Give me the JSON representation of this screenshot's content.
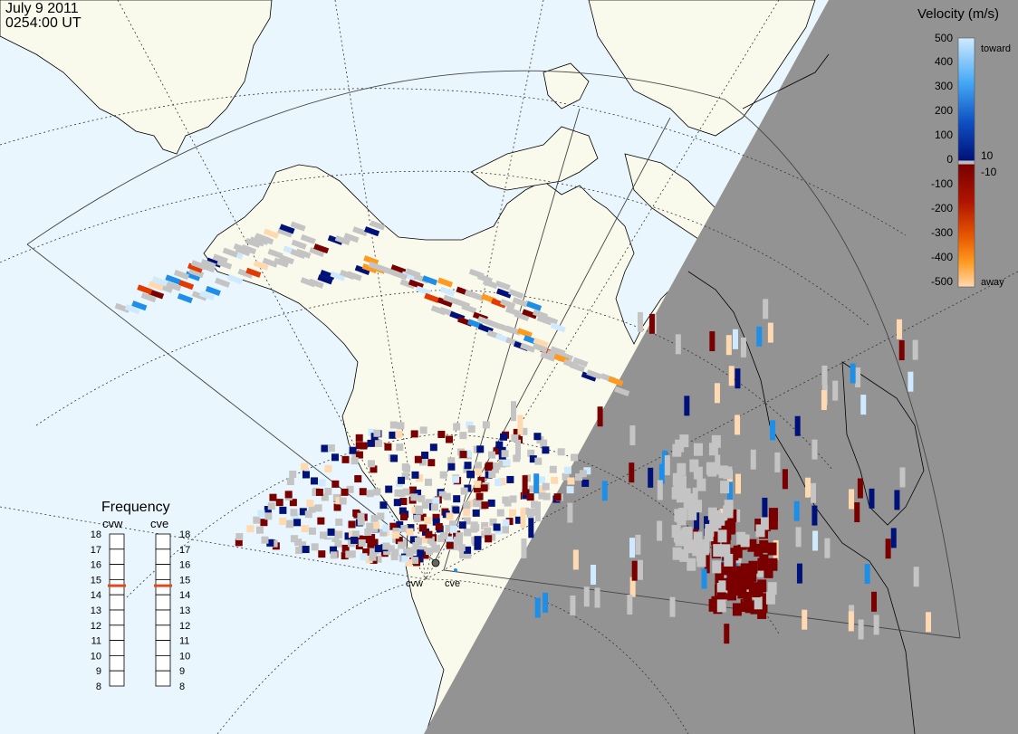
{
  "header": {
    "date": "July  9 2011",
    "time": "0254:00 UT"
  },
  "colorbar": {
    "title": "Velocity (m/s)",
    "ticks": [
      "500",
      "400",
      "300",
      "200",
      "100",
      "10",
      "0",
      "-10",
      "-100",
      "-200",
      "-300",
      "-400",
      "-500"
    ],
    "toward_label": "toward",
    "away_label": "away",
    "colors": {
      "toward_top": "#cfeaff",
      "toward_mid": "#1e8fe8",
      "toward_low": "#00127a",
      "zero": "#bdbdbd",
      "away_low": "#7a0000",
      "away_mid": "#e23a00",
      "away_high": "#ff9a20",
      "away_top": "#ffd9b0"
    }
  },
  "frequency_panel": {
    "title": "Frequency",
    "radars": [
      {
        "name": "cvw",
        "frequency": 14.6
      },
      {
        "name": "cve",
        "frequency": 14.6
      }
    ],
    "scale": [
      "18",
      "17",
      "16",
      "15",
      "14",
      "13",
      "12",
      "11",
      "10",
      "9",
      "8"
    ]
  },
  "radar_sites": [
    {
      "name": "cvw"
    },
    {
      "name": "cve"
    }
  ],
  "colors": {
    "ocean": "#e9f6fd",
    "land": "#fafaec",
    "night": "#939393",
    "ground_scatter": "#c4c4c4",
    "coast": "#000000",
    "frequency_marker": "#e04a1a"
  }
}
